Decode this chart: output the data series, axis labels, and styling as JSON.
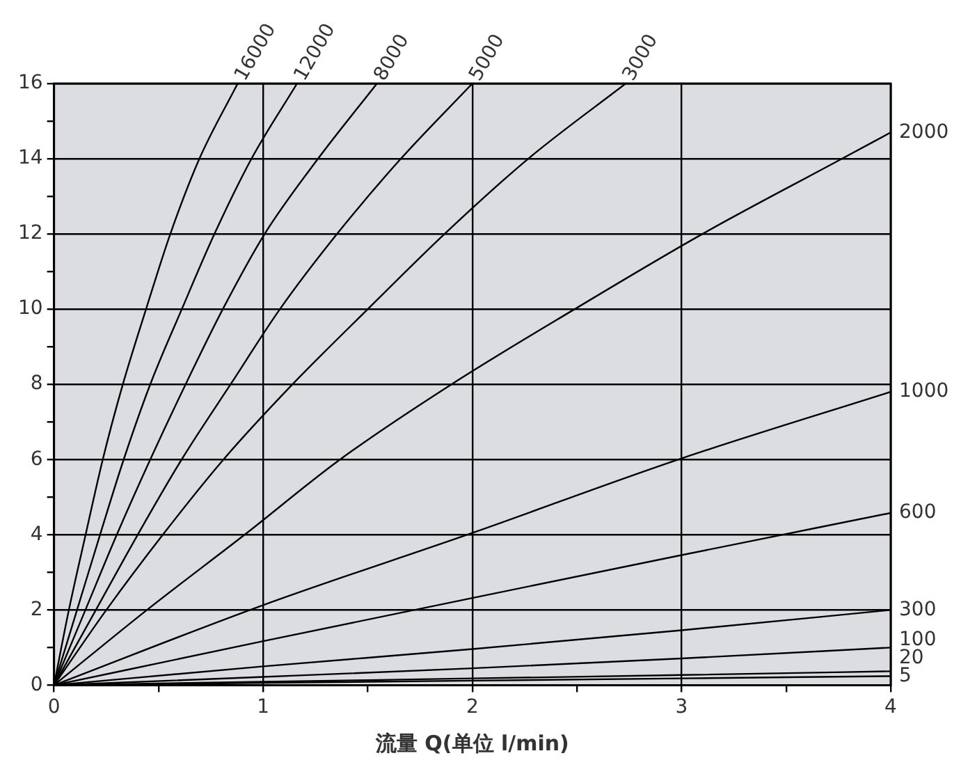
{
  "chart_data": {
    "type": "line",
    "xlabel": "流量 Q(单位 l/min)",
    "xlim": [
      0,
      4
    ],
    "ylim": [
      0,
      16
    ],
    "xticks": [
      0,
      {
        "value": 0.5,
        "label": null
      },
      1,
      {
        "value": 1.5,
        "label": null
      },
      2,
      {
        "value": 2.5,
        "label": null
      },
      3,
      {
        "value": 3.5,
        "label": null
      },
      4
    ],
    "yticks": [
      0,
      {
        "value": 1,
        "label": null
      },
      2,
      {
        "value": 3,
        "label": null
      },
      4,
      {
        "value": 5,
        "label": null
      },
      6,
      {
        "value": 7,
        "label": null
      },
      8,
      {
        "value": 9,
        "label": null
      },
      10,
      {
        "value": 11,
        "label": null
      },
      12,
      {
        "value": 13,
        "label": null
      },
      14,
      {
        "value": 15,
        "label": null
      },
      16
    ],
    "grid": true,
    "legend": false,
    "marker": "none",
    "line_style": "solid",
    "series": [
      {
        "name": "16000",
        "color": "#000000",
        "x": [
          0,
          0.071,
          0.151,
          0.233,
          0.329,
          0.44,
          0.556,
          0.695,
          0.878
        ],
        "values": [
          0,
          2,
          4,
          6,
          8,
          10,
          12,
          14,
          16
        ]
      },
      {
        "name": "12000",
        "color": "#000000",
        "x": [
          0,
          0.11,
          0.22,
          0.333,
          0.46,
          0.611,
          0.767,
          0.944,
          1.162
        ],
        "values": [
          0,
          2,
          4,
          6,
          8,
          10,
          12,
          14,
          16
        ]
      },
      {
        "name": "8000",
        "color": "#000000",
        "x": [
          0,
          0.15,
          0.3,
          0.46,
          0.629,
          0.807,
          1.007,
          1.262,
          1.544
        ],
        "values": [
          0,
          2,
          4,
          6,
          8,
          10,
          12,
          14,
          16
        ]
      },
      {
        "name": "5000",
        "color": "#000000",
        "x": [
          0,
          0.2,
          0.4,
          0.61,
          0.844,
          1.08,
          1.353,
          1.658,
          2.0
        ],
        "values": [
          0,
          2,
          4,
          6,
          8,
          10,
          12,
          14,
          16
        ]
      },
      {
        "name": "3000",
        "color": "#000000",
        "x": [
          0,
          0.25,
          0.52,
          0.81,
          1.14,
          1.5,
          1.867,
          2.267,
          2.733
        ],
        "values": [
          0,
          2,
          4,
          6,
          8,
          10,
          12,
          14,
          16
        ]
      },
      {
        "name": "2000",
        "color": "#000000",
        "x": [
          0,
          0.444,
          0.911,
          1.367,
          1.9,
          2.489,
          3.1,
          3.767,
          4
        ],
        "values": [
          0,
          2,
          4,
          6,
          8,
          10,
          12,
          14,
          14.7
        ]
      },
      {
        "name": "1000",
        "color": "#000000",
        "x": [
          0,
          1,
          2,
          3,
          4
        ],
        "values": [
          0,
          2.13,
          4.05,
          6.03,
          7.8
        ]
      },
      {
        "name": "600",
        "color": "#000000",
        "x": [
          0,
          1,
          2,
          3,
          4
        ],
        "values": [
          0,
          1.17,
          2.32,
          3.46,
          4.58
        ]
      },
      {
        "name": "300",
        "color": "#000000",
        "x": [
          0,
          1,
          2,
          3,
          4
        ],
        "values": [
          0,
          0.5,
          0.96,
          1.46,
          2.0
        ]
      },
      {
        "name": "100",
        "color": "#000000",
        "x": [
          0,
          1,
          2,
          3,
          4
        ],
        "values": [
          0,
          0.22,
          0.45,
          0.71,
          1.0
        ]
      },
      {
        "name": "20",
        "color": "#000000",
        "x": [
          0,
          1,
          2,
          3,
          4
        ],
        "values": [
          0,
          0.09,
          0.18,
          0.27,
          0.37
        ]
      },
      {
        "name": "5",
        "color": "#000000",
        "x": [
          0,
          1,
          2,
          3,
          4
        ],
        "values": [
          0,
          0.06,
          0.12,
          0.18,
          0.24
        ]
      }
    ]
  }
}
